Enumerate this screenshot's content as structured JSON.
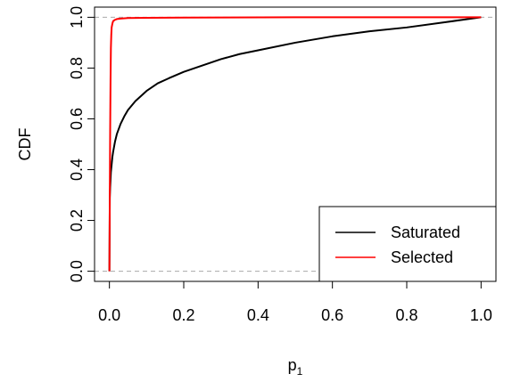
{
  "chart_data": {
    "type": "line",
    "xlabel": "p",
    "xlabel_subscript": "1",
    "ylabel": "CDF",
    "xlim": [
      0,
      1
    ],
    "ylim": [
      0,
      1
    ],
    "x_ticks": [
      0,
      0.2,
      0.4,
      0.6,
      0.8,
      1.0
    ],
    "x_tick_labels": [
      "0.0",
      "0.2",
      "0.4",
      "0.6",
      "0.8",
      "1.0"
    ],
    "y_ticks": [
      0,
      0.2,
      0.4,
      0.6,
      0.8,
      1.0
    ],
    "y_tick_labels": [
      "0.0",
      "0.2",
      "0.4",
      "0.6",
      "0.8",
      "1.0"
    ],
    "grid": false,
    "legend_position": "bottom-right",
    "reference_lines": [
      0,
      1
    ],
    "reference_color": "#aaaaaa",
    "series": [
      {
        "name": "Saturated",
        "color": "#000000",
        "x": [
          0,
          0.001,
          0.002,
          0.003,
          0.004,
          0.006,
          0.008,
          0.01,
          0.015,
          0.02,
          0.03,
          0.04,
          0.05,
          0.07,
          0.1,
          0.13,
          0.16,
          0.2,
          0.25,
          0.3,
          0.35,
          0.4,
          0.5,
          0.6,
          0.7,
          0.8,
          0.9,
          0.95,
          1.0
        ],
        "y": [
          0,
          0.29,
          0.33,
          0.36,
          0.39,
          0.42,
          0.45,
          0.47,
          0.51,
          0.54,
          0.58,
          0.61,
          0.635,
          0.67,
          0.71,
          0.74,
          0.76,
          0.785,
          0.81,
          0.835,
          0.855,
          0.87,
          0.9,
          0.925,
          0.945,
          0.96,
          0.98,
          0.99,
          1.0
        ]
      },
      {
        "name": "Selected",
        "color": "#ff0000",
        "x": [
          0,
          0.001,
          0.002,
          0.003,
          0.004,
          0.005,
          0.006,
          0.008,
          0.01,
          0.015,
          0.02,
          0.03,
          0.05,
          0.1,
          0.2,
          0.5,
          1.0
        ],
        "y": [
          0,
          0.3,
          0.55,
          0.75,
          0.88,
          0.93,
          0.96,
          0.975,
          0.985,
          0.99,
          0.993,
          0.995,
          0.997,
          0.998,
          0.999,
          1.0,
          1.0
        ]
      }
    ]
  }
}
